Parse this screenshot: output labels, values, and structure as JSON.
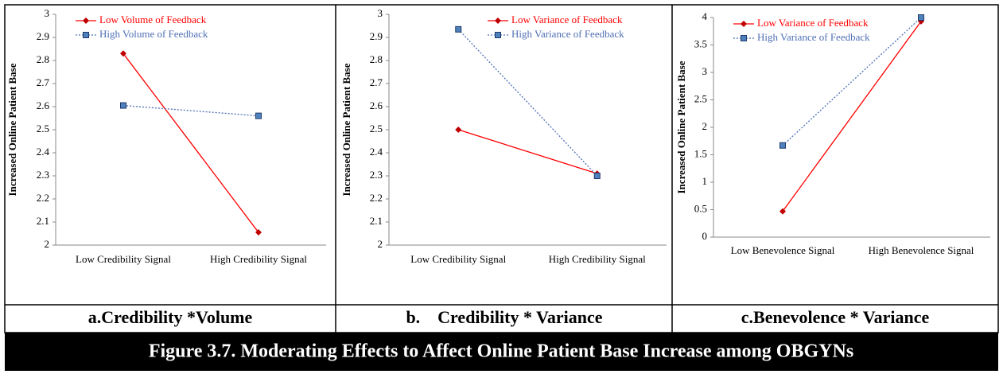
{
  "figure_title": "Figure 3.7. Moderating Effects to Affect Online Patient Base Increase among OBGYNs",
  "chart_data": [
    {
      "type": "line",
      "caption": "a.Credibility *Volume",
      "y_label": "Increased Online Patient Base",
      "categories": [
        "Low Credibility Signal",
        "High Credibility Signal"
      ],
      "series": [
        {
          "name": "Low Volume of Feedback",
          "color": "#ff0000",
          "values": [
            2.83,
            2.055
          ]
        },
        {
          "name": "High Volume of Feedback",
          "color": "#4f6fb5",
          "values": [
            2.605,
            2.56
          ]
        }
      ],
      "ylim": [
        2,
        3
      ],
      "yticks": [
        2,
        2.1,
        2.2,
        2.3,
        2.4,
        2.5,
        2.6,
        2.7,
        2.8,
        2.9,
        3
      ],
      "grid": false,
      "legend": "top-left"
    },
    {
      "type": "line",
      "caption": "b.    Credibility * Variance",
      "y_label": "Increased Online Patient Base",
      "categories": [
        "Low Credibility Signal",
        "High Credibility Signal"
      ],
      "series": [
        {
          "name": "Low Variance of Feedback",
          "color": "#ff0000",
          "values": [
            2.5,
            2.31
          ]
        },
        {
          "name": "High Variance of Feedback",
          "color": "#4f6fb5",
          "values": [
            2.935,
            2.3
          ]
        }
      ],
      "ylim": [
        2,
        3
      ],
      "yticks": [
        2,
        2.1,
        2.2,
        2.3,
        2.4,
        2.5,
        2.6,
        2.7,
        2.8,
        2.9,
        3
      ],
      "grid": false,
      "legend": "top-right"
    },
    {
      "type": "line",
      "caption": "c.Benevolence * Variance",
      "y_label": "Increased Online Patient Base",
      "categories": [
        "Low Benevolence Signal",
        "High Benevolence Signal"
      ],
      "series": [
        {
          "name": "Low Variance of Feedback",
          "color": "#ff0000",
          "values": [
            0.47,
            3.93
          ]
        },
        {
          "name": "High Variance of Feedback",
          "color": "#4f6fb5",
          "values": [
            1.67,
            4.0
          ]
        }
      ],
      "ylim": [
        0,
        4
      ],
      "yticks": [
        0,
        0.5,
        1,
        1.5,
        2,
        2.5,
        3,
        3.5,
        4
      ],
      "grid": false,
      "legend": "top-left"
    }
  ]
}
